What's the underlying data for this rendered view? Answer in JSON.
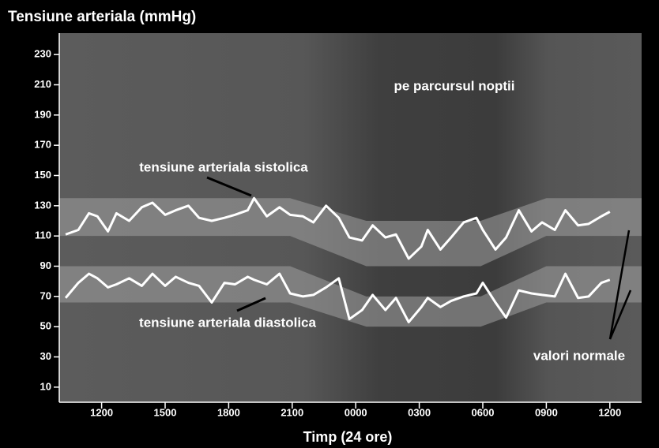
{
  "chart_data": {
    "type": "line",
    "title": "Tensiune arteriala (mmHg)",
    "xlabel": "Timp (24 ore)",
    "annotations": [
      "pe parcursul noptii",
      "valori normale"
    ],
    "xlim": [
      10,
      37.5
    ],
    "ylim": [
      0,
      240
    ],
    "xticks": [
      {
        "value": 12,
        "label": "1200"
      },
      {
        "value": 15,
        "label": "1500"
      },
      {
        "value": 18,
        "label": "1800"
      },
      {
        "value": 21,
        "label": "2100"
      },
      {
        "value": 24,
        "label": "0000"
      },
      {
        "value": 27,
        "label": "0300"
      },
      {
        "value": 30,
        "label": "0600"
      },
      {
        "value": 33,
        "label": "0900"
      },
      {
        "value": 36,
        "label": "1200"
      }
    ],
    "yticks": [
      10,
      30,
      50,
      70,
      90,
      110,
      130,
      150,
      170,
      190,
      210,
      230
    ],
    "x": [
      10.3,
      10.9,
      11.4,
      11.8,
      12.3,
      12.7,
      13.3,
      13.9,
      14.4,
      15.0,
      15.5,
      16.1,
      16.6,
      17.2,
      17.8,
      18.3,
      18.9,
      19.2,
      19.8,
      20.4,
      20.9,
      21.5,
      22.0,
      22.6,
      23.2,
      23.7,
      24.3,
      24.8,
      25.4,
      25.9,
      26.5,
      27.1,
      27.4,
      28.0,
      28.5,
      29.1,
      29.7,
      30.0,
      30.6,
      31.1,
      31.7,
      32.3,
      32.8,
      33.4,
      33.9,
      34.5,
      35.0,
      35.6,
      36.0
    ],
    "series": [
      {
        "name": "tensiune arteriala sistolica",
        "color": "#ffffff",
        "values": [
          111,
          114,
          125,
          123,
          113,
          125,
          120,
          129,
          132,
          124,
          127,
          130,
          122,
          120,
          122,
          124,
          127,
          135,
          123,
          129,
          124,
          123,
          119,
          130,
          122,
          109,
          107,
          117,
          109,
          111,
          95,
          103,
          114,
          101,
          109,
          119,
          122,
          114,
          101,
          109,
          127,
          113,
          119,
          114,
          127,
          117,
          118,
          123,
          126
        ]
      },
      {
        "name": "tensiune arteriala diastolica",
        "color": "#ffffff",
        "values": [
          69,
          79,
          85,
          82,
          76,
          78,
          82,
          77,
          85,
          77,
          83,
          79,
          77,
          66,
          79,
          78,
          83,
          81,
          78,
          85,
          72,
          70,
          71,
          76,
          82,
          55,
          61,
          71,
          61,
          69,
          53,
          63,
          69,
          63,
          67,
          70,
          72,
          79,
          66,
          56,
          74,
          72,
          71,
          70,
          85,
          69,
          70,
          79,
          81
        ]
      }
    ],
    "normal_ranges": [
      {
        "x": [
          10,
          20.9,
          24.5,
          29.9,
          33,
          37.5
        ],
        "low": [
          110,
          110,
          90,
          90,
          110,
          110
        ],
        "high": [
          135,
          135,
          120,
          120,
          135,
          135
        ]
      },
      {
        "x": [
          10,
          20.9,
          24.5,
          29.9,
          33,
          37.5
        ],
        "low": [
          66,
          66,
          50,
          50,
          66,
          66
        ],
        "high": [
          90,
          90,
          70,
          70,
          90,
          90
        ]
      }
    ]
  }
}
